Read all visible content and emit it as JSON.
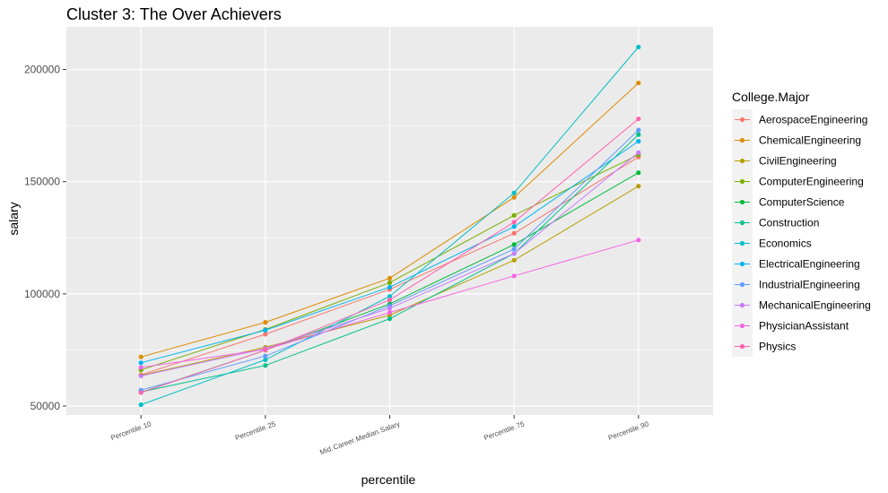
{
  "chart_data": {
    "type": "line",
    "title": "Cluster 3: The Over Achievers",
    "xlabel": "percentile",
    "ylabel": "salary",
    "categories": [
      "Percentile.10",
      "Percentile.25",
      "Mid.Career.Median.Salary",
      "Percentile.75",
      "Percentile.90"
    ],
    "y_ticks": [
      50000,
      100000,
      150000,
      200000
    ],
    "ylim": [
      46000,
      219000
    ],
    "grid": true,
    "legend_title": "College.Major",
    "legend_position": "right",
    "series": [
      {
        "name": "AerospaceEngineering",
        "color": "#F8766D",
        "values": [
          63900,
          82000,
          102000,
          127000,
          161000
        ]
      },
      {
        "name": "ChemicalEngineering",
        "color": "#DE8C00",
        "values": [
          71900,
          87300,
          107000,
          143000,
          194000
        ]
      },
      {
        "name": "CivilEngineering",
        "color": "#B79F00",
        "values": [
          63700,
          76200,
          90500,
          115000,
          148000
        ]
      },
      {
        "name": "ComputerEngineering",
        "color": "#7CAE00",
        "values": [
          66100,
          84100,
          105000,
          135000,
          162000
        ]
      },
      {
        "name": "ComputerScience",
        "color": "#00BA38",
        "values": [
          56100,
          74900,
          95500,
          122000,
          154000
        ]
      },
      {
        "name": "Construction",
        "color": "#00C08B",
        "values": [
          56300,
          68100,
          88900,
          118000,
          171000
        ]
      },
      {
        "name": "Economics",
        "color": "#00BFC4",
        "values": [
          50600,
          70600,
          98900,
          145000,
          210000
        ]
      },
      {
        "name": "ElectricalEngineering",
        "color": "#00B4F0",
        "values": [
          69300,
          83800,
          103000,
          130000,
          168000
        ]
      },
      {
        "name": "IndustrialEngineering",
        "color": "#619CFF",
        "values": [
          57100,
          72300,
          94700,
          120000,
          173000
        ]
      },
      {
        "name": "MechanicalEngineering",
        "color": "#C77CFF",
        "values": [
          63400,
          75600,
          93600,
          118000,
          163000
        ]
      },
      {
        "name": "PhysicianAssistant",
        "color": "#F564E3",
        "values": [
          67200,
          75200,
          91700,
          108000,
          124000
        ]
      },
      {
        "name": "Physics",
        "color": "#FF64B0",
        "values": [
          56000,
          74900,
          97300,
          132000,
          178000
        ]
      }
    ]
  }
}
